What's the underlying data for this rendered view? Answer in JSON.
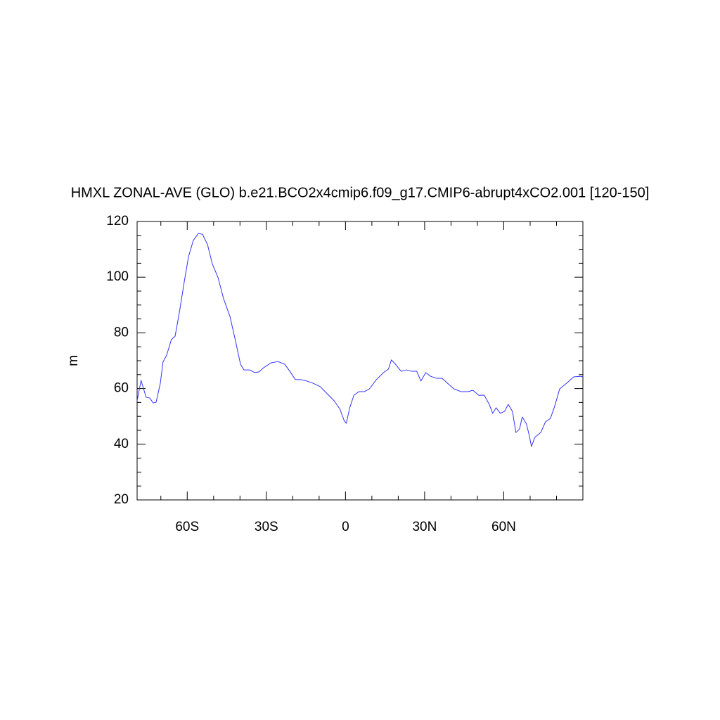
{
  "chart_data": {
    "type": "line",
    "title": "HMXL ZONAL-AVE (GLO) b.e21.BCO2x4cmip6.f09_g17.CMIP6-abrupt4xCO2.001 [120-150]",
    "ylabel": "m",
    "xlim": [
      -79,
      90
    ],
    "ylim": [
      20,
      120
    ],
    "xticks": [
      {
        "value": -60,
        "label": "60S"
      },
      {
        "value": -30,
        "label": "30S"
      },
      0,
      {
        "value": 30,
        "label": "30N"
      },
      {
        "value": 60,
        "label": "60N"
      }
    ],
    "xminorticks": [
      -70,
      -50,
      -40,
      -20,
      -10,
      10,
      20,
      40,
      50,
      70,
      80,
      90
    ],
    "yticks": [
      20,
      40,
      60,
      80,
      100,
      120
    ],
    "yminorticks": [
      25,
      30,
      35,
      45,
      50,
      55,
      65,
      70,
      75,
      85,
      90,
      95,
      105,
      110,
      115
    ],
    "series": [
      {
        "color": "#3333ff",
        "x": [
          -79,
          -77.5,
          -75.6,
          -74.2,
          -72.9,
          -71.8,
          -70.2,
          -69.2,
          -67.8,
          -66,
          -64.6,
          -63,
          -61.1,
          -59.5,
          -57.7,
          -55.8,
          -54.2,
          -52.3,
          -50.5,
          -48.3,
          -46.2,
          -43.8,
          -41.7,
          -39.8,
          -38.5,
          -36.3,
          -34.4,
          -32.8,
          -31,
          -28.3,
          -25.6,
          -23,
          -21.1,
          -19,
          -16.8,
          -14.7,
          -12.3,
          -9.6,
          -6.9,
          -4.3,
          -2.1,
          -0.5,
          0.3,
          1.6,
          3.2,
          5.1,
          7.2,
          9.1,
          11.7,
          14.4,
          16.3,
          17.4,
          19,
          21.1,
          23.2,
          25.1,
          27,
          28.6,
          30.4,
          32.3,
          34.4,
          36.6,
          38.7,
          41.1,
          43.8,
          46.5,
          48.3,
          50.5,
          52.6,
          54.5,
          55.8,
          57.1,
          58.7,
          60.3,
          61.7,
          63.3,
          64.6,
          66,
          67,
          68.6,
          69.7,
          70.5,
          71.8,
          74,
          75.8,
          77.7,
          79.3,
          81.2,
          83.8,
          86.5,
          89.2,
          90
        ],
        "values": [
          55.6,
          62.9,
          56.9,
          56.6,
          54.8,
          55.1,
          61.9,
          69.5,
          72.0,
          77.6,
          78.8,
          87.2,
          98.5,
          107.4,
          113.2,
          115.7,
          115.4,
          111.7,
          104.8,
          99.8,
          92.2,
          85.9,
          77.1,
          68.7,
          66.7,
          66.7,
          65.7,
          66.0,
          67.5,
          69.2,
          69.7,
          68.7,
          66.2,
          63.2,
          63.2,
          62.7,
          61.9,
          60.7,
          58.1,
          55.6,
          52.6,
          48.5,
          47.5,
          53.1,
          57.6,
          58.9,
          58.9,
          59.9,
          63.2,
          65.7,
          67.0,
          70.3,
          68.7,
          66.2,
          66.7,
          66.2,
          66.2,
          62.7,
          65.7,
          64.4,
          63.7,
          63.7,
          61.9,
          59.9,
          58.9,
          58.9,
          59.4,
          57.6,
          57.6,
          54.3,
          51.1,
          53.1,
          51.1,
          51.8,
          54.3,
          51.8,
          44.2,
          45.5,
          49.8,
          47.3,
          43.0,
          39.2,
          42.5,
          44.2,
          48.0,
          49.3,
          53.6,
          59.9,
          61.9,
          64.2,
          64.4,
          64.2
        ]
      }
    ]
  }
}
